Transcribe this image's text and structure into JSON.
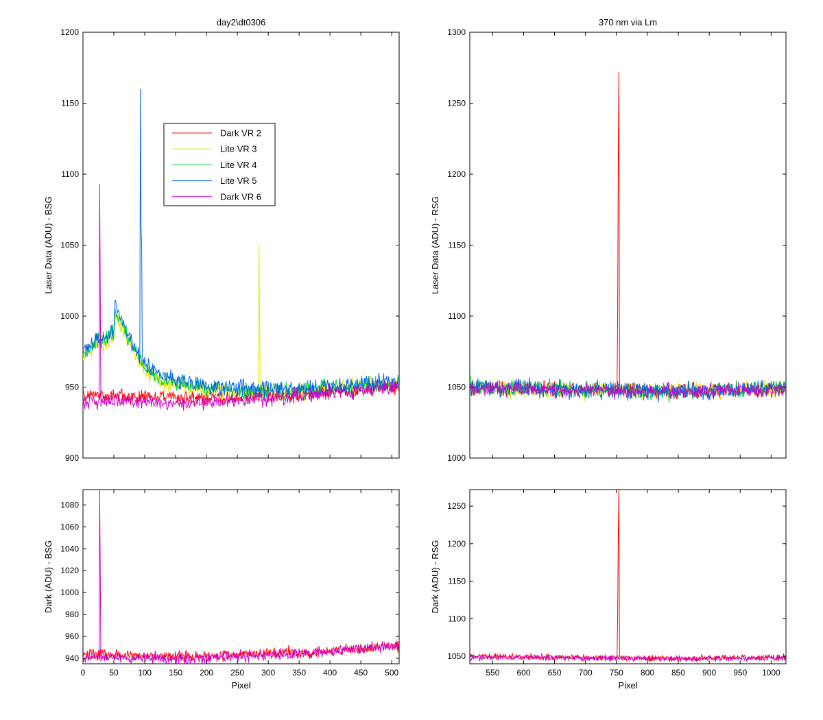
{
  "figure": {
    "colors": {
      "Dark VR 2": "#ff0000",
      "Lite VR 3": "#e6e600",
      "Lite VR 4": "#00d03a",
      "Lite VR 5": "#0066ee",
      "Dark VR 6": "#cc00cc"
    }
  },
  "chart_data": [
    {
      "id": "top-left",
      "type": "line",
      "title": "day2\\dt0306",
      "xlabel": "",
      "ylabel": "Laser Data (ADU) - BSG",
      "xlim": [
        0,
        512
      ],
      "ylim": [
        900,
        1200
      ],
      "xticks": [],
      "yticks": [
        900,
        950,
        1000,
        1050,
        1100,
        1150,
        1200
      ],
      "legend": {
        "position": "upper-left-inside",
        "entries": [
          "Dark VR 2",
          "Lite VR 3",
          "Lite VR 4",
          "Lite VR 5",
          "Dark VR 6"
        ]
      },
      "series": [
        {
          "name": "Dark VR 2",
          "noise": 2.5,
          "base": [
            [
              0,
              945
            ],
            [
              100,
              943
            ],
            [
              200,
              942
            ],
            [
              300,
              943
            ],
            [
              400,
              947
            ],
            [
              512,
              951
            ]
          ],
          "spikes": []
        },
        {
          "name": "Lite VR 3",
          "noise": 3,
          "base": [
            [
              0,
              970
            ],
            [
              28,
              985
            ],
            [
              30,
              980
            ],
            [
              50,
              985
            ],
            [
              52,
              1003
            ],
            [
              60,
              995
            ],
            [
              80,
              975
            ],
            [
              100,
              962
            ],
            [
              130,
              953
            ],
            [
              200,
              948
            ],
            [
              280,
              946
            ],
            [
              350,
              947
            ],
            [
              450,
              950
            ],
            [
              512,
              952
            ]
          ],
          "spikes": [
            [
              285,
              1050
            ],
            [
              286,
              1000
            ]
          ]
        },
        {
          "name": "Lite VR 4",
          "noise": 3,
          "base": [
            [
              0,
              973
            ],
            [
              28,
              985
            ],
            [
              30,
              982
            ],
            [
              50,
              988
            ],
            [
              52,
              1004
            ],
            [
              60,
              998
            ],
            [
              80,
              978
            ],
            [
              100,
              965
            ],
            [
              130,
              955
            ],
            [
              200,
              949
            ],
            [
              280,
              947
            ],
            [
              350,
              948
            ],
            [
              450,
              951
            ],
            [
              512,
              953
            ]
          ],
          "spikes": []
        },
        {
          "name": "Lite VR 5",
          "noise": 3,
          "base": [
            [
              0,
              975
            ],
            [
              28,
              987
            ],
            [
              30,
              984
            ],
            [
              50,
              990
            ],
            [
              52,
              1006
            ],
            [
              60,
              1000
            ],
            [
              80,
              980
            ],
            [
              100,
              967
            ],
            [
              130,
              957
            ],
            [
              200,
              951
            ],
            [
              280,
              949
            ],
            [
              350,
              949
            ],
            [
              450,
              952
            ],
            [
              512,
              954
            ]
          ],
          "spikes": [
            [
              93,
              1160
            ],
            [
              94,
              1063
            ],
            [
              95,
              1052
            ]
          ]
        },
        {
          "name": "Dark VR 6",
          "noise": 2.5,
          "base": [
            [
              0,
              940
            ],
            [
              100,
              940
            ],
            [
              150,
              938
            ],
            [
              250,
              940
            ],
            [
              350,
              944
            ],
            [
              450,
              948
            ],
            [
              512,
              951
            ]
          ],
          "spikes": [
            [
              27,
              1093
            ],
            [
              28,
              1019
            ]
          ]
        }
      ]
    },
    {
      "id": "top-right",
      "type": "line",
      "title": "370 nm via Lm",
      "xlabel": "",
      "ylabel": "Laser Data (ADU) - RSG",
      "xlim": [
        513,
        1024
      ],
      "ylim": [
        1000,
        1300
      ],
      "xticks": [],
      "yticks": [
        1000,
        1050,
        1100,
        1150,
        1200,
        1250,
        1300
      ],
      "series": [
        {
          "name": "Dark VR 2",
          "noise": 2.5,
          "base": [
            [
              513,
              1050
            ],
            [
              700,
              1048
            ],
            [
              850,
              1047
            ],
            [
              1024,
              1049
            ]
          ],
          "spikes": [
            [
              752,
              1105
            ],
            [
              753,
              1215
            ],
            [
              754,
              1272
            ],
            [
              755,
              1050
            ]
          ]
        },
        {
          "name": "Lite VR 3",
          "noise": 3,
          "base": [
            [
              513,
              1050
            ],
            [
              700,
              1048
            ],
            [
              850,
              1047
            ],
            [
              1024,
              1049
            ]
          ],
          "spikes": []
        },
        {
          "name": "Lite VR 4",
          "noise": 3,
          "base": [
            [
              513,
              1050
            ],
            [
              700,
              1048
            ],
            [
              850,
              1047
            ],
            [
              1024,
              1049
            ]
          ],
          "spikes": []
        },
        {
          "name": "Lite VR 5",
          "noise": 3,
          "base": [
            [
              513,
              1050
            ],
            [
              700,
              1048
            ],
            [
              850,
              1047
            ],
            [
              1024,
              1049
            ]
          ],
          "spikes": []
        },
        {
          "name": "Dark VR 6",
          "noise": 2.5,
          "base": [
            [
              513,
              1049
            ],
            [
              700,
              1048
            ],
            [
              850,
              1047
            ],
            [
              1024,
              1048
            ]
          ],
          "spikes": []
        }
      ]
    },
    {
      "id": "bottom-left",
      "type": "line",
      "title": "",
      "xlabel": "Pixel",
      "ylabel": "Dark (ADU) - BSG",
      "xlim": [
        0,
        512
      ],
      "ylim": [
        935,
        1094
      ],
      "xticks": [
        0,
        50,
        100,
        150,
        200,
        250,
        300,
        350,
        400,
        450,
        500
      ],
      "yticks": [
        940,
        960,
        980,
        1000,
        1020,
        1040,
        1060,
        1080
      ],
      "series": [
        {
          "name": "Dark VR 2",
          "noise": 2.5,
          "base": [
            [
              0,
              944
            ],
            [
              100,
              942
            ],
            [
              200,
              942
            ],
            [
              300,
              944
            ],
            [
              400,
              947
            ],
            [
              512,
              951
            ]
          ],
          "spikes": []
        },
        {
          "name": "Dark VR 6",
          "noise": 2.5,
          "base": [
            [
              0,
              941
            ],
            [
              100,
              940
            ],
            [
              200,
              940
            ],
            [
              300,
              943
            ],
            [
              400,
              947
            ],
            [
              512,
              951
            ]
          ],
          "spikes": [
            [
              27,
              1094
            ],
            [
              28,
              1019
            ]
          ]
        }
      ]
    },
    {
      "id": "bottom-right",
      "type": "line",
      "title": "",
      "xlabel": "Pixel",
      "ylabel": "Dark (ADU) - RSG",
      "xlim": [
        513,
        1024
      ],
      "ylim": [
        1040,
        1272
      ],
      "xticks": [
        550,
        600,
        650,
        700,
        750,
        800,
        850,
        900,
        950,
        1000
      ],
      "yticks": [
        1050,
        1100,
        1150,
        1200,
        1250
      ],
      "series": [
        {
          "name": "Dark VR 2",
          "noise": 2,
          "base": [
            [
              513,
              1050
            ],
            [
              700,
              1048
            ],
            [
              850,
              1047
            ],
            [
              1024,
              1049
            ]
          ],
          "spikes": [
            [
              752,
              1105
            ],
            [
              753,
              1215
            ],
            [
              754,
              1272
            ],
            [
              755,
              1050
            ]
          ]
        },
        {
          "name": "Dark VR 6",
          "noise": 2,
          "base": [
            [
              513,
              1049
            ],
            [
              700,
              1048
            ],
            [
              850,
              1047
            ],
            [
              1024,
              1048
            ]
          ],
          "spikes": []
        }
      ]
    }
  ]
}
